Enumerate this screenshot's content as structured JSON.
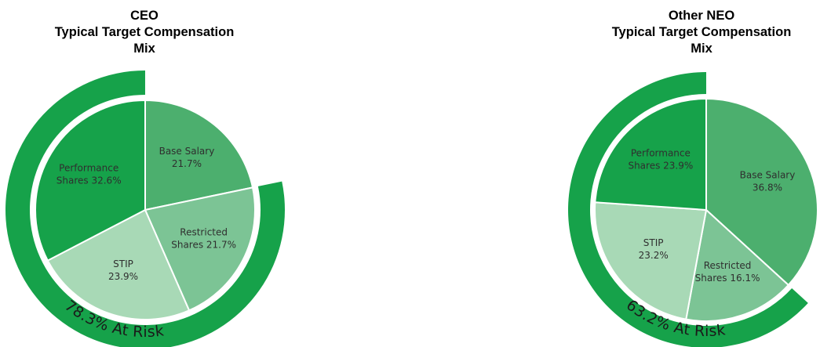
{
  "charts": [
    {
      "id": "ceo",
      "title_lines": [
        "CEO",
        "Typical Target Compensation",
        "Mix"
      ],
      "risk_label": "78.3% At Risk"
    },
    {
      "id": "neo",
      "title_lines": [
        "Other NEO",
        "Typical Target Compensation",
        "Mix"
      ],
      "risk_label": "63.2% At Risk"
    }
  ],
  "chart_data": [
    {
      "type": "pie",
      "title": "CEO Typical Target Compensation Mix",
      "slices": [
        {
          "label_lines": [
            "Base Salary",
            "21.7%"
          ],
          "name": "Base Salary",
          "value": 21.7,
          "color": "#4caf6e",
          "at_risk": false
        },
        {
          "label_lines": [
            "Restricted",
            "Shares 21.7%"
          ],
          "name": "Restricted Shares",
          "value": 21.7,
          "color": "#7cc495",
          "at_risk": true
        },
        {
          "label_lines": [
            "STIP",
            "23.9%"
          ],
          "name": "STIP",
          "value": 23.9,
          "color": "#a8d9b6",
          "at_risk": true
        },
        {
          "label_lines": [
            "Performance",
            "Shares 32.6%"
          ],
          "name": "Performance Shares",
          "value": 32.6,
          "color": "#16a24a",
          "at_risk": true
        }
      ],
      "at_risk_total": 78.3,
      "risk_ring_color": "#16a24a"
    },
    {
      "type": "pie",
      "title": "Other NEO Typical Target Compensation Mix",
      "slices": [
        {
          "label_lines": [
            "Base Salary",
            "36.8%"
          ],
          "name": "Base Salary",
          "value": 36.8,
          "color": "#4caf6e",
          "at_risk": false
        },
        {
          "label_lines": [
            "Restricted",
            "Shares 16.1%"
          ],
          "name": "Restricted Shares",
          "value": 16.1,
          "color": "#7cc495",
          "at_risk": true
        },
        {
          "label_lines": [
            "STIP",
            "23.2%"
          ],
          "name": "STIP",
          "value": 23.2,
          "color": "#a8d9b6",
          "at_risk": true
        },
        {
          "label_lines": [
            "Performance",
            "Shares 23.9%"
          ],
          "name": "Performance Shares",
          "value": 23.9,
          "color": "#16a24a",
          "at_risk": true
        }
      ],
      "at_risk_total": 63.2,
      "risk_ring_color": "#16a24a"
    }
  ]
}
